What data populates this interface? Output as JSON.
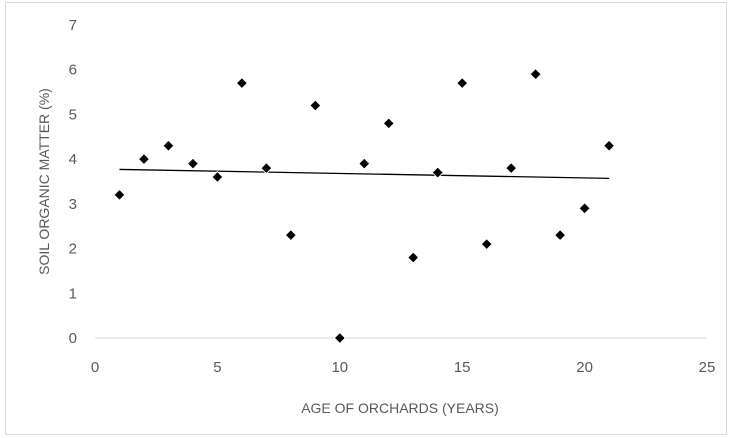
{
  "chart_data": {
    "type": "scatter",
    "title": "",
    "xlabel": "AGE OF ORCHARDS (YEARS)",
    "ylabel": "SOIL ORGANIC MATTER (%)",
    "xlim": [
      0,
      25
    ],
    "ylim": [
      0,
      7
    ],
    "x_ticks": [
      0,
      5,
      10,
      15,
      20,
      25
    ],
    "y_ticks": [
      0,
      1,
      2,
      3,
      4,
      5,
      6,
      7
    ],
    "grid": false,
    "legend": "none",
    "marker": "diamond",
    "marker_color": "#000000",
    "series": [
      {
        "x": [
          1,
          2,
          3,
          4,
          5,
          6,
          7,
          8,
          9,
          10,
          11,
          12,
          13,
          14,
          15,
          16,
          17,
          18,
          19,
          20,
          21
        ],
        "y": [
          3.2,
          4.0,
          4.3,
          3.9,
          3.6,
          5.7,
          3.8,
          2.3,
          5.2,
          0.0,
          3.9,
          4.8,
          1.8,
          3.7,
          5.7,
          2.1,
          3.8,
          5.9,
          2.3,
          2.9,
          4.3
        ]
      }
    ],
    "trendline": {
      "type": "linear",
      "x": [
        1,
        21
      ],
      "y": [
        3.77,
        3.57
      ],
      "color": "#000000"
    }
  }
}
